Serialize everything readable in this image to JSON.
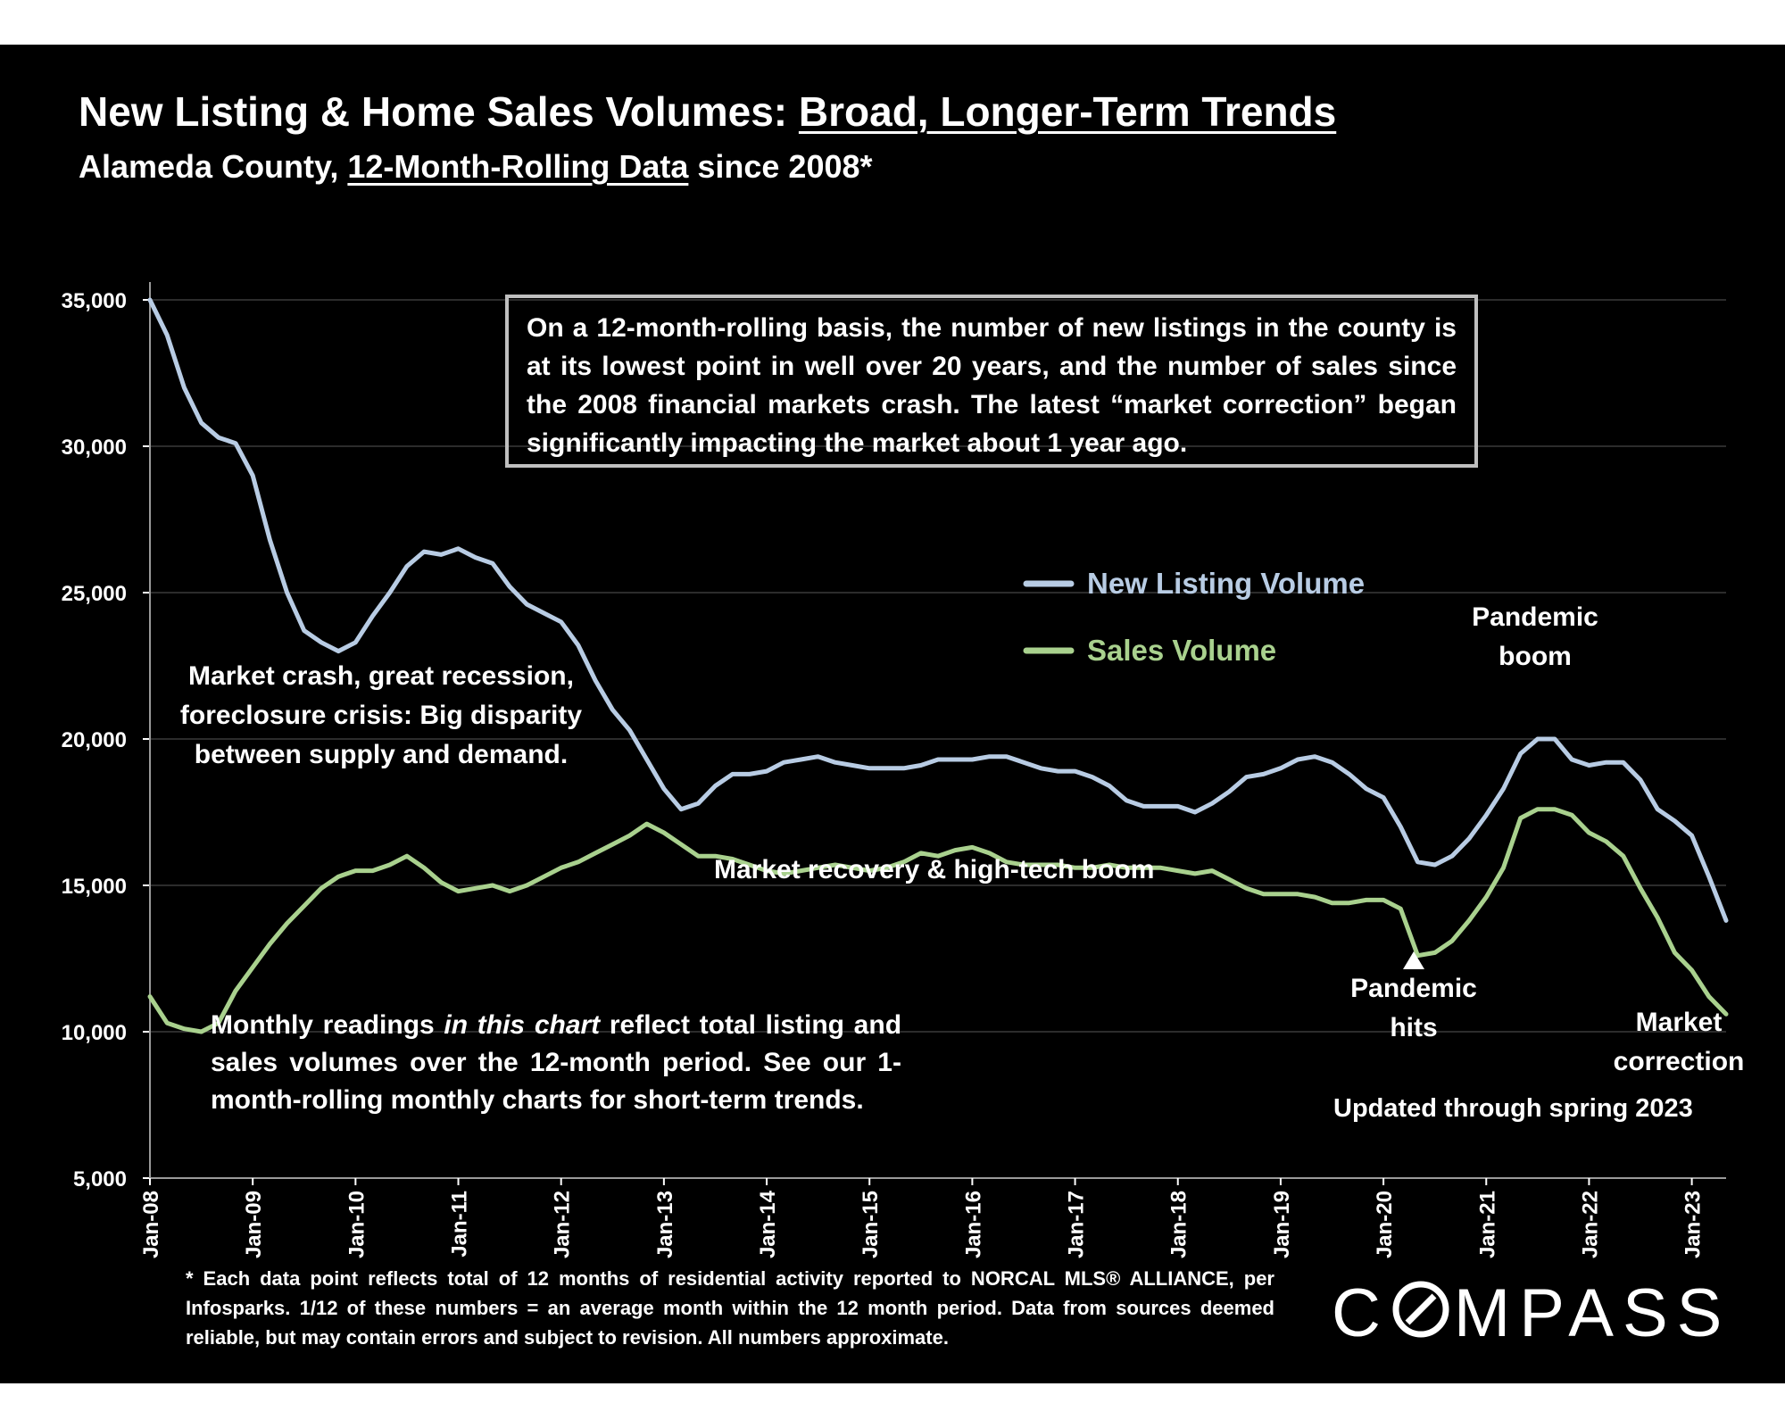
{
  "chart_data": {
    "type": "line",
    "title": "New Listing & Home Sales Volumes: Broad, Longer-Term Trends",
    "title_plain": "New Listing & Home Sales Volumes: ",
    "title_underlined": "Broad, Longer-Term Trends",
    "subtitle_plain_1": "Alameda County, ",
    "subtitle_underlined": "12-Month-Rolling Data",
    "subtitle_plain_2": " since 2008*",
    "xlabel": "",
    "ylabel": "",
    "ylim": [
      5000,
      35000
    ],
    "y_ticks": [
      5000,
      10000,
      15000,
      20000,
      25000,
      30000,
      35000
    ],
    "y_tick_labels": [
      "5,000",
      "10,000",
      "15,000",
      "20,000",
      "25,000",
      "30,000",
      "35,000"
    ],
    "x_start": "Jan-08",
    "x_end": "May-23",
    "x_tick_labels": [
      "Jan-08",
      "Jan-09",
      "Jan-10",
      "Jan-11",
      "Jan-12",
      "Jan-13",
      "Jan-14",
      "Jan-15",
      "Jan-16",
      "Jan-17",
      "Jan-18",
      "Jan-19",
      "Jan-20",
      "Jan-21",
      "Jan-22",
      "Jan-23"
    ],
    "grid": true,
    "legend_position": "center-right",
    "series": [
      {
        "name": "New Listing Volume",
        "color": "#b8cce4",
        "points": [
          [
            "Jan-08",
            35000
          ],
          [
            "Mar-08",
            33800
          ],
          [
            "May-08",
            32000
          ],
          [
            "Jul-08",
            30800
          ],
          [
            "Sep-08",
            30300
          ],
          [
            "Nov-08",
            30100
          ],
          [
            "Jan-09",
            29000
          ],
          [
            "Mar-09",
            26800
          ],
          [
            "May-09",
            25000
          ],
          [
            "Jul-09",
            23700
          ],
          [
            "Sep-09",
            23300
          ],
          [
            "Nov-09",
            23000
          ],
          [
            "Jan-10",
            23300
          ],
          [
            "Mar-10",
            24200
          ],
          [
            "May-10",
            25000
          ],
          [
            "Jul-10",
            25900
          ],
          [
            "Sep-10",
            26400
          ],
          [
            "Nov-10",
            26300
          ],
          [
            "Jan-11",
            26500
          ],
          [
            "Mar-11",
            26200
          ],
          [
            "May-11",
            26000
          ],
          [
            "Jul-11",
            25200
          ],
          [
            "Sep-11",
            24600
          ],
          [
            "Nov-11",
            24300
          ],
          [
            "Jan-12",
            24000
          ],
          [
            "Mar-12",
            23200
          ],
          [
            "May-12",
            22000
          ],
          [
            "Jul-12",
            21000
          ],
          [
            "Sep-12",
            20300
          ],
          [
            "Nov-12",
            19300
          ],
          [
            "Jan-13",
            18300
          ],
          [
            "Mar-13",
            17600
          ],
          [
            "May-13",
            17800
          ],
          [
            "Jul-13",
            18400
          ],
          [
            "Sep-13",
            18800
          ],
          [
            "Nov-13",
            18800
          ],
          [
            "Jan-14",
            18900
          ],
          [
            "Mar-14",
            19200
          ],
          [
            "May-14",
            19300
          ],
          [
            "Jul-14",
            19400
          ],
          [
            "Sep-14",
            19200
          ],
          [
            "Nov-14",
            19100
          ],
          [
            "Jan-15",
            19000
          ],
          [
            "Mar-15",
            19000
          ],
          [
            "May-15",
            19000
          ],
          [
            "Jul-15",
            19100
          ],
          [
            "Sep-15",
            19300
          ],
          [
            "Nov-15",
            19300
          ],
          [
            "Jan-16",
            19300
          ],
          [
            "Mar-16",
            19400
          ],
          [
            "May-16",
            19400
          ],
          [
            "Jul-16",
            19200
          ],
          [
            "Sep-16",
            19000
          ],
          [
            "Nov-16",
            18900
          ],
          [
            "Jan-17",
            18900
          ],
          [
            "Mar-17",
            18700
          ],
          [
            "May-17",
            18400
          ],
          [
            "Jul-17",
            17900
          ],
          [
            "Sep-17",
            17700
          ],
          [
            "Nov-17",
            17700
          ],
          [
            "Jan-18",
            17700
          ],
          [
            "Mar-18",
            17500
          ],
          [
            "May-18",
            17800
          ],
          [
            "Jul-18",
            18200
          ],
          [
            "Sep-18",
            18700
          ],
          [
            "Nov-18",
            18800
          ],
          [
            "Jan-19",
            19000
          ],
          [
            "Mar-19",
            19300
          ],
          [
            "May-19",
            19400
          ],
          [
            "Jul-19",
            19200
          ],
          [
            "Sep-19",
            18800
          ],
          [
            "Nov-19",
            18300
          ],
          [
            "Jan-20",
            18000
          ],
          [
            "Mar-20",
            17000
          ],
          [
            "May-20",
            15800
          ],
          [
            "Jul-20",
            15700
          ],
          [
            "Sep-20",
            16000
          ],
          [
            "Nov-20",
            16600
          ],
          [
            "Jan-21",
            17400
          ],
          [
            "Mar-21",
            18300
          ],
          [
            "May-21",
            19500
          ],
          [
            "Jul-21",
            20000
          ],
          [
            "Sep-21",
            20000
          ],
          [
            "Nov-21",
            19300
          ],
          [
            "Jan-22",
            19100
          ],
          [
            "Mar-22",
            19200
          ],
          [
            "May-22",
            19200
          ],
          [
            "Jul-22",
            18600
          ],
          [
            "Sep-22",
            17600
          ],
          [
            "Nov-22",
            17200
          ],
          [
            "Jan-23",
            16700
          ],
          [
            "Mar-23",
            15300
          ],
          [
            "May-23",
            13800
          ]
        ]
      },
      {
        "name": "Sales Volume",
        "color": "#a9d18e",
        "points": [
          [
            "Jan-08",
            11200
          ],
          [
            "Mar-08",
            10300
          ],
          [
            "May-08",
            10100
          ],
          [
            "Jul-08",
            10000
          ],
          [
            "Sep-08",
            10300
          ],
          [
            "Nov-08",
            11400
          ],
          [
            "Jan-09",
            12200
          ],
          [
            "Mar-09",
            13000
          ],
          [
            "May-09",
            13700
          ],
          [
            "Jul-09",
            14300
          ],
          [
            "Sep-09",
            14900
          ],
          [
            "Nov-09",
            15300
          ],
          [
            "Jan-10",
            15500
          ],
          [
            "Mar-10",
            15500
          ],
          [
            "May-10",
            15700
          ],
          [
            "Jul-10",
            16000
          ],
          [
            "Sep-10",
            15600
          ],
          [
            "Nov-10",
            15100
          ],
          [
            "Jan-11",
            14800
          ],
          [
            "Mar-11",
            14900
          ],
          [
            "May-11",
            15000
          ],
          [
            "Jul-11",
            14800
          ],
          [
            "Sep-11",
            15000
          ],
          [
            "Nov-11",
            15300
          ],
          [
            "Jan-12",
            15600
          ],
          [
            "Mar-12",
            15800
          ],
          [
            "May-12",
            16100
          ],
          [
            "Jul-12",
            16400
          ],
          [
            "Sep-12",
            16700
          ],
          [
            "Nov-12",
            17100
          ],
          [
            "Jan-13",
            16800
          ],
          [
            "Mar-13",
            16400
          ],
          [
            "May-13",
            16000
          ],
          [
            "Jul-13",
            16000
          ],
          [
            "Sep-13",
            15900
          ],
          [
            "Nov-13",
            15700
          ],
          [
            "Jan-14",
            15500
          ],
          [
            "Mar-14",
            15400
          ],
          [
            "May-14",
            15500
          ],
          [
            "Jul-14",
            15600
          ],
          [
            "Sep-14",
            15700
          ],
          [
            "Nov-14",
            15600
          ],
          [
            "Jan-15",
            15500
          ],
          [
            "Mar-15",
            15600
          ],
          [
            "May-15",
            15800
          ],
          [
            "Jul-15",
            16100
          ],
          [
            "Sep-15",
            16000
          ],
          [
            "Nov-15",
            16200
          ],
          [
            "Jan-16",
            16300
          ],
          [
            "Mar-16",
            16100
          ],
          [
            "May-16",
            15800
          ],
          [
            "Jul-16",
            15700
          ],
          [
            "Sep-16",
            15700
          ],
          [
            "Nov-16",
            15700
          ],
          [
            "Jan-17",
            15600
          ],
          [
            "Mar-17",
            15600
          ],
          [
            "May-17",
            15700
          ],
          [
            "Jul-17",
            15600
          ],
          [
            "Sep-17",
            15600
          ],
          [
            "Nov-17",
            15600
          ],
          [
            "Jan-18",
            15500
          ],
          [
            "Mar-18",
            15400
          ],
          [
            "May-18",
            15500
          ],
          [
            "Jul-18",
            15200
          ],
          [
            "Sep-18",
            14900
          ],
          [
            "Nov-18",
            14700
          ],
          [
            "Jan-19",
            14700
          ],
          [
            "Mar-19",
            14700
          ],
          [
            "May-19",
            14600
          ],
          [
            "Jul-19",
            14400
          ],
          [
            "Sep-19",
            14400
          ],
          [
            "Nov-19",
            14500
          ],
          [
            "Jan-20",
            14500
          ],
          [
            "Mar-20",
            14200
          ],
          [
            "May-20",
            12600
          ],
          [
            "Jul-20",
            12700
          ],
          [
            "Sep-20",
            13100
          ],
          [
            "Nov-20",
            13800
          ],
          [
            "Jan-21",
            14600
          ],
          [
            "Mar-21",
            15600
          ],
          [
            "May-21",
            17300
          ],
          [
            "Jul-21",
            17600
          ],
          [
            "Sep-21",
            17600
          ],
          [
            "Nov-21",
            17400
          ],
          [
            "Jan-22",
            16800
          ],
          [
            "Mar-22",
            16500
          ],
          [
            "May-22",
            16000
          ],
          [
            "Jul-22",
            14900
          ],
          [
            "Sep-22",
            13900
          ],
          [
            "Nov-22",
            12700
          ],
          [
            "Jan-23",
            12100
          ],
          [
            "Mar-23",
            11200
          ],
          [
            "May-23",
            10600
          ]
        ]
      }
    ]
  },
  "annotations": {
    "callout": "On a 12-month-rolling basis, the number of new listings in the county is at its lowest point in well over 20 years, and the number of sales since the 2008 financial markets crash. The latest “market correction” began significantly impacting the market about 1 year ago.",
    "crash": "Market crash,  great recession, foreclosure crisis: Big disparity between supply and demand.",
    "recovery": "Market recovery & high-tech boom",
    "pandemic_boom": "Pandemic boom",
    "pandemic_hits": "Pandemic hits",
    "market_correction": "Market correction",
    "monthly_plain_1": "Monthly readings ",
    "monthly_italic": "in this chart",
    "monthly_plain_2": " reflect total listing and sales volumes over the 12-month period. See our 1-month-rolling monthly charts for short-term trends.",
    "updated": "Updated through spring 2023",
    "footnote": "* Each data point reflects total of 12 months of residential activity reported to NORCAL MLS® ALLIANCE, per Infosparks. 1/12 of these numbers = an average month within the 12 month period. Data from sources deemed reliable, but may contain errors and subject to revision. All numbers approximate."
  },
  "brand": {
    "logo_text_left": "C",
    "logo_text_right": "MPASS",
    "logo_name": "compass-logo-icon"
  }
}
